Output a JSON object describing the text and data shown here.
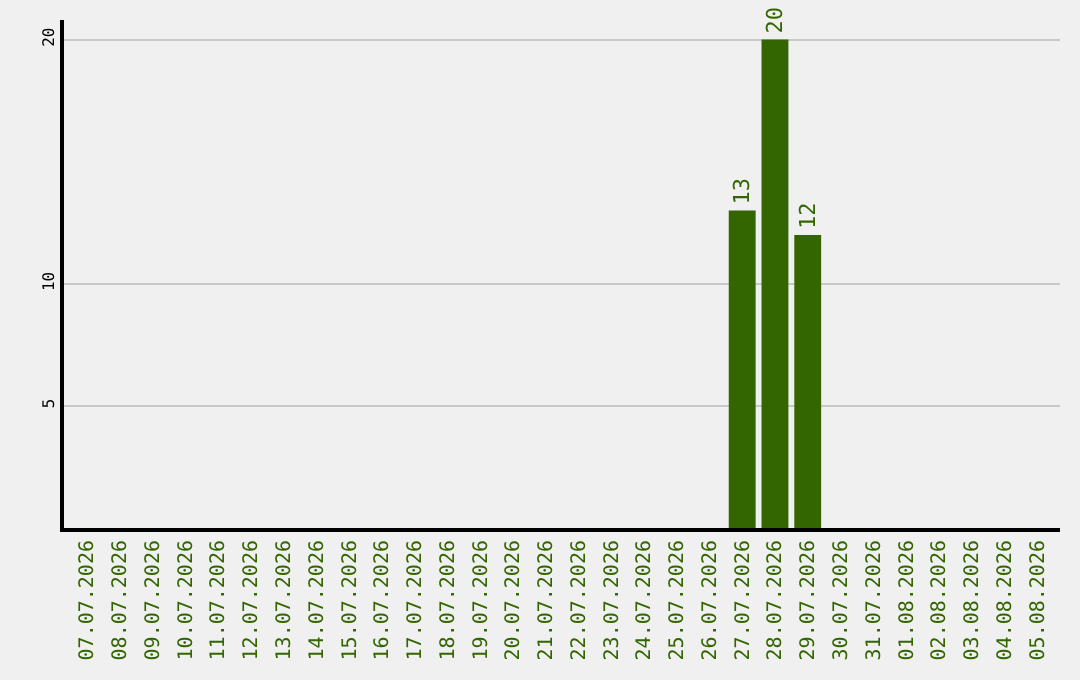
{
  "chart_data": {
    "type": "bar",
    "categories": [
      "07.07.2026",
      "08.07.2026",
      "09.07.2026",
      "10.07.2026",
      "11.07.2026",
      "12.07.2026",
      "13.07.2026",
      "14.07.2026",
      "15.07.2026",
      "16.07.2026",
      "17.07.2026",
      "18.07.2026",
      "19.07.2026",
      "20.07.2026",
      "21.07.2026",
      "22.07.2026",
      "23.07.2026",
      "24.07.2026",
      "25.07.2026",
      "26.07.2026",
      "27.07.2026",
      "28.07.2026",
      "29.07.2026",
      "30.07.2026",
      "31.07.2026",
      "01.08.2026",
      "02.08.2026",
      "03.08.2026",
      "04.08.2026",
      "05.08.2026"
    ],
    "values": [
      0,
      0,
      0,
      0,
      0,
      0,
      0,
      0,
      0,
      0,
      0,
      0,
      0,
      0,
      0,
      0,
      0,
      0,
      0,
      0,
      13,
      20,
      12,
      0,
      0,
      0,
      0,
      0,
      0,
      0
    ],
    "value_labels": [
      null,
      null,
      null,
      null,
      null,
      null,
      null,
      null,
      null,
      null,
      null,
      null,
      null,
      null,
      null,
      null,
      null,
      null,
      null,
      null,
      "13",
      "20",
      "12",
      null,
      null,
      null,
      null,
      null,
      null,
      null
    ],
    "color": "#336600",
    "ylim": [
      0,
      20.8
    ],
    "yticks": [
      5,
      10,
      20
    ],
    "grid": "y",
    "legend": false
  }
}
